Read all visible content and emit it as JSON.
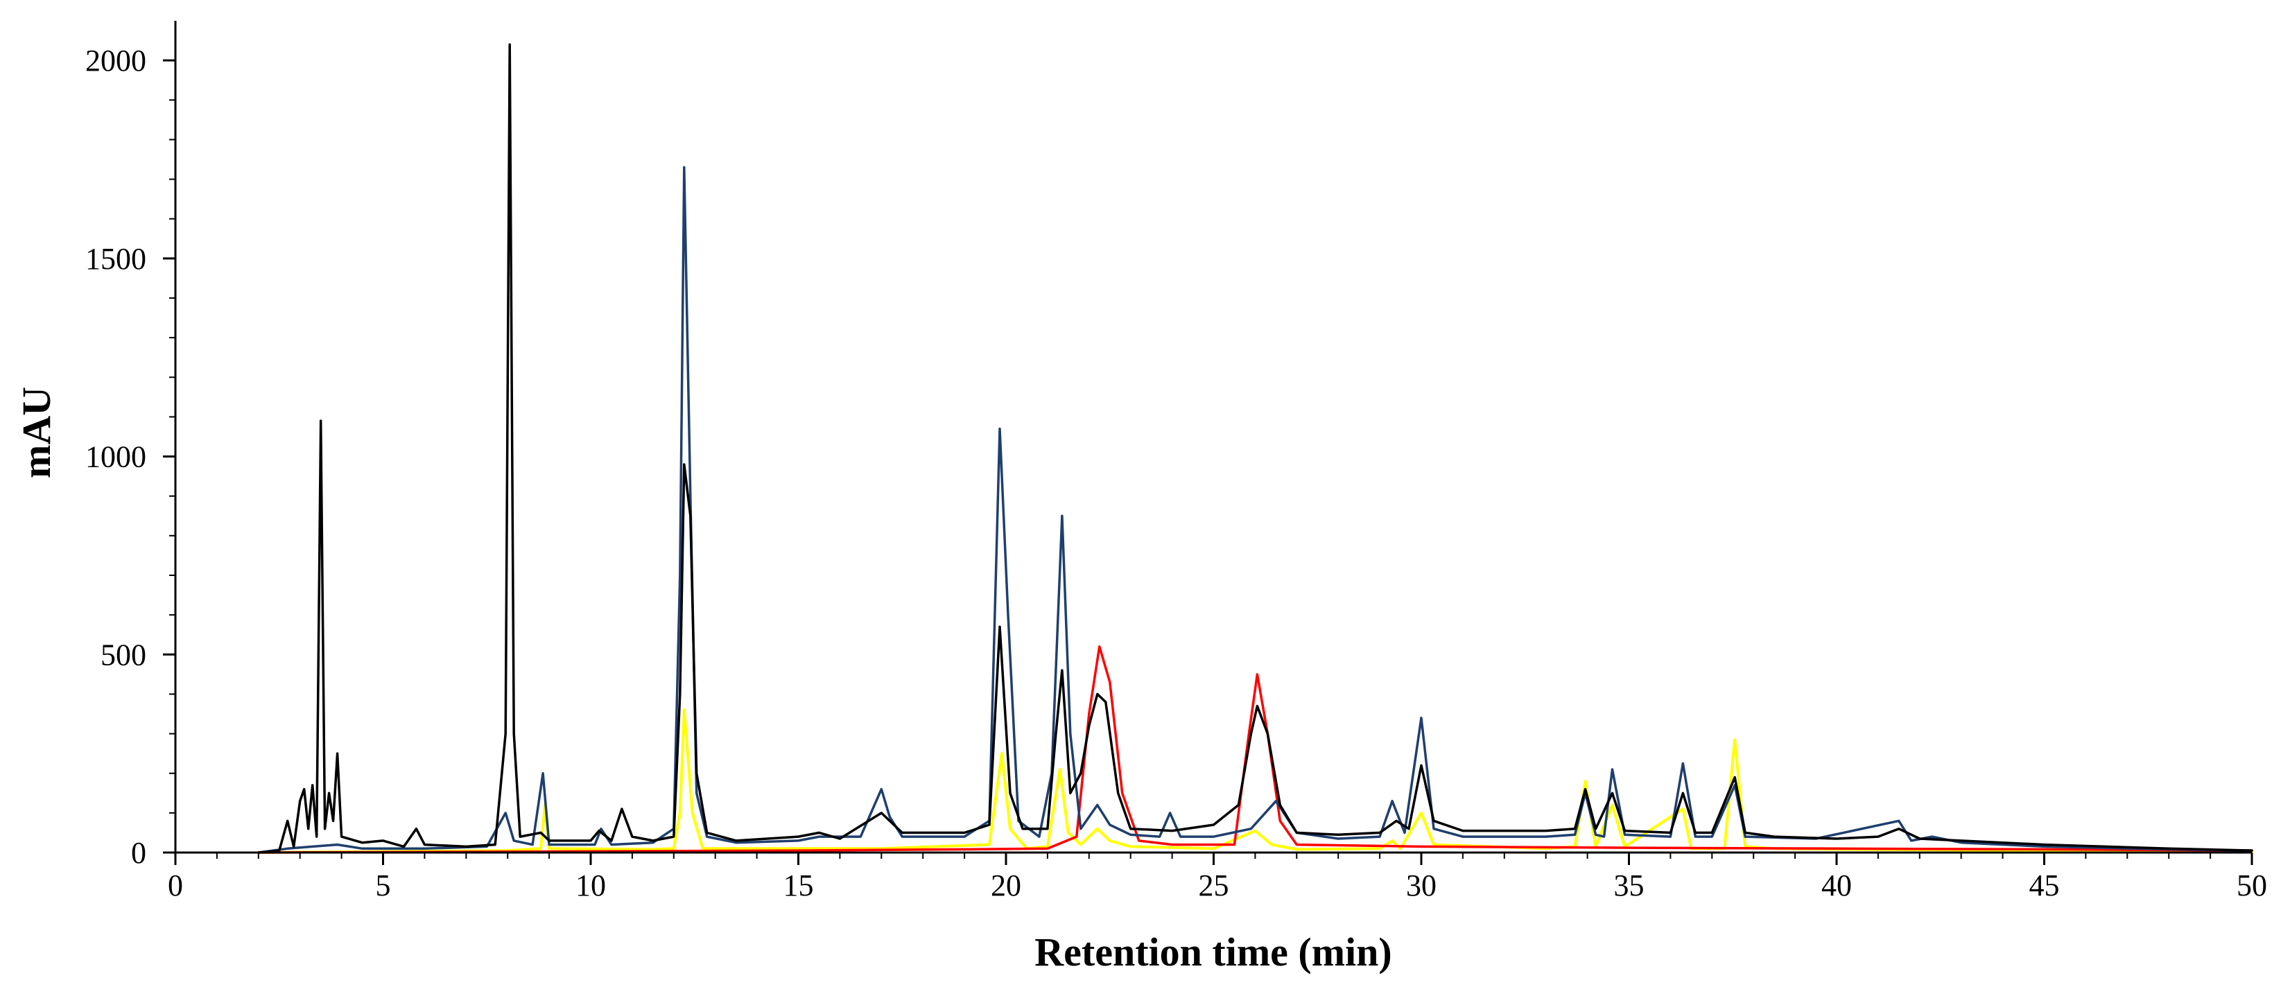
{
  "chart_data": {
    "type": "line",
    "title": "",
    "xlabel": "Retention time (min)",
    "ylabel": "mAU",
    "xlim": [
      0,
      50
    ],
    "ylim": [
      0,
      2100
    ],
    "x_ticks": [
      0,
      5,
      10,
      15,
      20,
      25,
      30,
      35,
      40,
      45,
      50
    ],
    "y_ticks": [
      0,
      500,
      1000,
      1500,
      2000
    ],
    "grid": false,
    "legend": "none",
    "series": [
      {
        "color": "#000000",
        "points": [
          [
            2.0,
            0
          ],
          [
            2.5,
            5
          ],
          [
            2.7,
            80
          ],
          [
            2.85,
            15
          ],
          [
            3.0,
            130
          ],
          [
            3.1,
            160
          ],
          [
            3.2,
            60
          ],
          [
            3.3,
            170
          ],
          [
            3.4,
            40
          ],
          [
            3.5,
            1090
          ],
          [
            3.6,
            60
          ],
          [
            3.7,
            150
          ],
          [
            3.8,
            80
          ],
          [
            3.9,
            250
          ],
          [
            4.0,
            40
          ],
          [
            4.5,
            25
          ],
          [
            5.0,
            30
          ],
          [
            5.5,
            15
          ],
          [
            5.8,
            60
          ],
          [
            6.0,
            20
          ],
          [
            7.0,
            15
          ],
          [
            7.7,
            20
          ],
          [
            7.95,
            300
          ],
          [
            8.05,
            2040
          ],
          [
            8.15,
            300
          ],
          [
            8.3,
            40
          ],
          [
            8.8,
            50
          ],
          [
            9.0,
            30
          ],
          [
            10.0,
            30
          ],
          [
            10.2,
            55
          ],
          [
            10.5,
            30
          ],
          [
            10.75,
            110
          ],
          [
            11.0,
            40
          ],
          [
            11.5,
            30
          ],
          [
            12.0,
            40
          ],
          [
            12.15,
            400
          ],
          [
            12.25,
            980
          ],
          [
            12.4,
            850
          ],
          [
            12.55,
            200
          ],
          [
            12.8,
            50
          ],
          [
            13.5,
            30
          ],
          [
            15.0,
            40
          ],
          [
            15.5,
            50
          ],
          [
            16.0,
            35
          ],
          [
            17.0,
            100
          ],
          [
            17.5,
            50
          ],
          [
            19.0,
            50
          ],
          [
            19.6,
            70
          ],
          [
            19.85,
            570
          ],
          [
            20.1,
            150
          ],
          [
            20.4,
            60
          ],
          [
            21.0,
            60
          ],
          [
            21.2,
            300
          ],
          [
            21.35,
            460
          ],
          [
            21.55,
            150
          ],
          [
            21.8,
            200
          ],
          [
            22.0,
            320
          ],
          [
            22.2,
            400
          ],
          [
            22.4,
            380
          ],
          [
            22.7,
            150
          ],
          [
            23.0,
            60
          ],
          [
            24.0,
            55
          ],
          [
            25.0,
            70
          ],
          [
            25.6,
            120
          ],
          [
            25.9,
            300
          ],
          [
            26.05,
            370
          ],
          [
            26.3,
            300
          ],
          [
            26.6,
            120
          ],
          [
            27.0,
            50
          ],
          [
            28.0,
            45
          ],
          [
            29.0,
            50
          ],
          [
            29.4,
            80
          ],
          [
            29.7,
            60
          ],
          [
            30.0,
            220
          ],
          [
            30.3,
            80
          ],
          [
            31.0,
            55
          ],
          [
            32.0,
            55
          ],
          [
            33.0,
            55
          ],
          [
            33.7,
            60
          ],
          [
            33.95,
            160
          ],
          [
            34.2,
            60
          ],
          [
            34.6,
            150
          ],
          [
            34.9,
            55
          ],
          [
            36.0,
            50
          ],
          [
            36.3,
            150
          ],
          [
            36.6,
            50
          ],
          [
            37.0,
            50
          ],
          [
            37.55,
            190
          ],
          [
            37.8,
            50
          ],
          [
            38.5,
            40
          ],
          [
            40.0,
            35
          ],
          [
            41.0,
            40
          ],
          [
            41.5,
            60
          ],
          [
            42.0,
            35
          ],
          [
            43.0,
            30
          ],
          [
            45.0,
            20
          ],
          [
            48.0,
            10
          ],
          [
            50.0,
            5
          ]
        ]
      },
      {
        "color": "#1f3f6e",
        "points": [
          [
            2.0,
            0
          ],
          [
            2.7,
            10
          ],
          [
            3.3,
            15
          ],
          [
            3.9,
            20
          ],
          [
            4.5,
            10
          ],
          [
            6.0,
            10
          ],
          [
            7.5,
            15
          ],
          [
            7.95,
            100
          ],
          [
            8.15,
            30
          ],
          [
            8.6,
            20
          ],
          [
            8.85,
            200
          ],
          [
            9.0,
            20
          ],
          [
            10.1,
            20
          ],
          [
            10.25,
            60
          ],
          [
            10.5,
            20
          ],
          [
            11.5,
            25
          ],
          [
            12.0,
            60
          ],
          [
            12.15,
            700
          ],
          [
            12.25,
            1730
          ],
          [
            12.4,
            900
          ],
          [
            12.55,
            150
          ],
          [
            12.8,
            40
          ],
          [
            13.5,
            25
          ],
          [
            15.0,
            30
          ],
          [
            15.5,
            40
          ],
          [
            16.5,
            40
          ],
          [
            17.0,
            160
          ],
          [
            17.2,
            90
          ],
          [
            17.5,
            40
          ],
          [
            19.0,
            40
          ],
          [
            19.6,
            80
          ],
          [
            19.85,
            1070
          ],
          [
            20.05,
            600
          ],
          [
            20.3,
            80
          ],
          [
            20.8,
            40
          ],
          [
            21.1,
            200
          ],
          [
            21.35,
            850
          ],
          [
            21.55,
            300
          ],
          [
            21.8,
            60
          ],
          [
            22.2,
            120
          ],
          [
            22.5,
            70
          ],
          [
            23.0,
            45
          ],
          [
            23.7,
            40
          ],
          [
            23.95,
            100
          ],
          [
            24.2,
            40
          ],
          [
            25.0,
            40
          ],
          [
            25.9,
            60
          ],
          [
            26.5,
            130
          ],
          [
            27.0,
            50
          ],
          [
            28.0,
            35
          ],
          [
            29.0,
            40
          ],
          [
            29.3,
            130
          ],
          [
            29.6,
            50
          ],
          [
            30.0,
            340
          ],
          [
            30.3,
            60
          ],
          [
            31.0,
            40
          ],
          [
            33.0,
            40
          ],
          [
            33.7,
            45
          ],
          [
            33.95,
            150
          ],
          [
            34.2,
            45
          ],
          [
            34.4,
            40
          ],
          [
            34.6,
            210
          ],
          [
            34.9,
            45
          ],
          [
            36.0,
            40
          ],
          [
            36.3,
            225
          ],
          [
            36.6,
            40
          ],
          [
            37.0,
            40
          ],
          [
            37.55,
            170
          ],
          [
            37.8,
            40
          ],
          [
            39.5,
            35
          ],
          [
            41.5,
            80
          ],
          [
            41.8,
            30
          ],
          [
            42.3,
            40
          ],
          [
            43.0,
            25
          ],
          [
            45.0,
            15
          ],
          [
            48.0,
            8
          ],
          [
            50.0,
            5
          ]
        ]
      },
      {
        "color": "#ffff00",
        "points": [
          [
            2.0,
            0
          ],
          [
            8.0,
            5
          ],
          [
            8.8,
            10
          ],
          [
            8.9,
            120
          ],
          [
            9.0,
            10
          ],
          [
            11.5,
            8
          ],
          [
            12.0,
            10
          ],
          [
            12.15,
            100
          ],
          [
            12.25,
            360
          ],
          [
            12.45,
            100
          ],
          [
            12.7,
            10
          ],
          [
            15.0,
            10
          ],
          [
            17.0,
            10
          ],
          [
            19.6,
            20
          ],
          [
            19.9,
            250
          ],
          [
            20.1,
            60
          ],
          [
            20.5,
            10
          ],
          [
            21.0,
            15
          ],
          [
            21.3,
            210
          ],
          [
            21.5,
            50
          ],
          [
            21.8,
            20
          ],
          [
            22.2,
            60
          ],
          [
            22.5,
            30
          ],
          [
            23.0,
            15
          ],
          [
            25.0,
            10
          ],
          [
            26.0,
            55
          ],
          [
            26.4,
            20
          ],
          [
            27.0,
            8
          ],
          [
            29.0,
            10
          ],
          [
            29.3,
            30
          ],
          [
            29.5,
            10
          ],
          [
            30.0,
            100
          ],
          [
            30.3,
            20
          ],
          [
            33.0,
            10
          ],
          [
            33.7,
            15
          ],
          [
            33.95,
            180
          ],
          [
            34.2,
            15
          ],
          [
            34.6,
            120
          ],
          [
            34.9,
            15
          ],
          [
            36.3,
            110
          ],
          [
            36.5,
            10
          ],
          [
            37.3,
            10
          ],
          [
            37.55,
            285
          ],
          [
            37.8,
            15
          ],
          [
            38.5,
            10
          ],
          [
            40.0,
            8
          ],
          [
            45.0,
            5
          ],
          [
            50.0,
            3
          ]
        ]
      },
      {
        "color": "#ff0000",
        "points": [
          [
            2.0,
            0
          ],
          [
            10.0,
            3
          ],
          [
            15.0,
            5
          ],
          [
            19.0,
            8
          ],
          [
            21.0,
            10
          ],
          [
            21.7,
            40
          ],
          [
            22.0,
            350
          ],
          [
            22.25,
            520
          ],
          [
            22.5,
            430
          ],
          [
            22.8,
            150
          ],
          [
            23.2,
            30
          ],
          [
            24.0,
            20
          ],
          [
            25.5,
            20
          ],
          [
            25.85,
            300
          ],
          [
            26.05,
            450
          ],
          [
            26.3,
            300
          ],
          [
            26.6,
            80
          ],
          [
            27.0,
            20
          ],
          [
            30.0,
            15
          ],
          [
            35.0,
            12
          ],
          [
            40.0,
            10
          ],
          [
            45.0,
            8
          ],
          [
            50.0,
            5
          ]
        ]
      }
    ]
  }
}
